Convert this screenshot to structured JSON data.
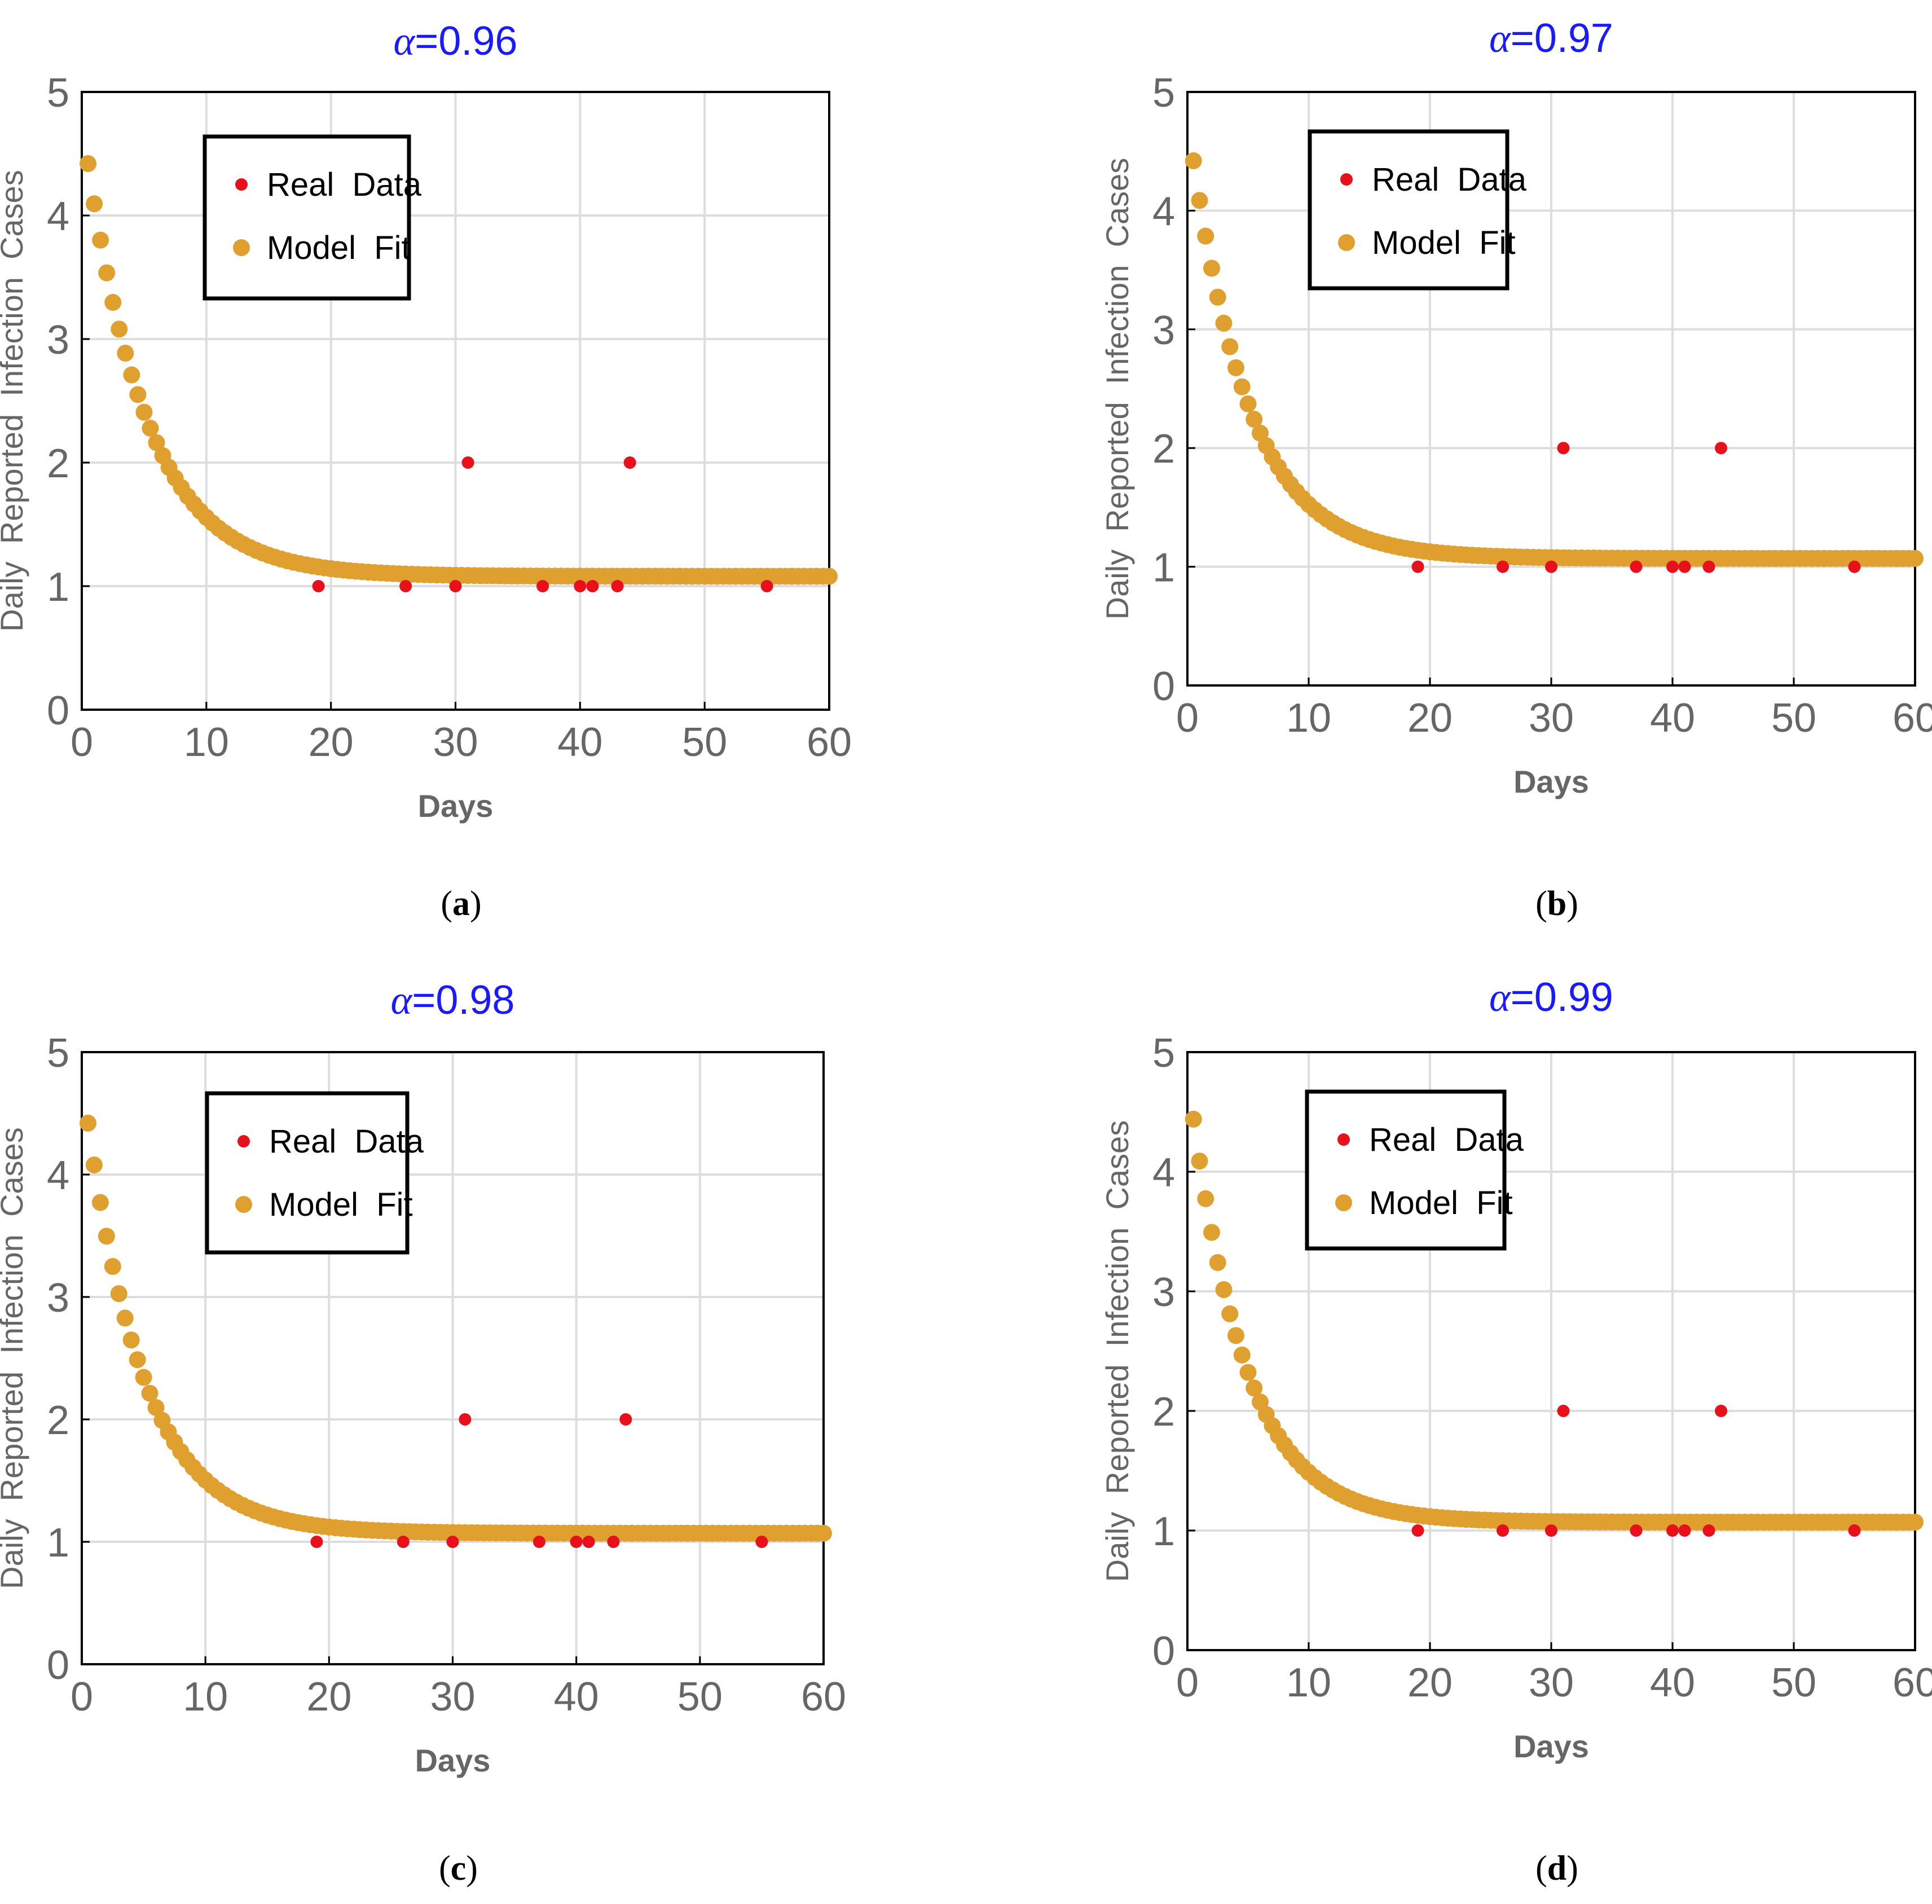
{
  "figure": {
    "colors": {
      "real": "#e8101a",
      "model": "#e0a030",
      "title": "#1a1aff",
      "grid": "#dddddd",
      "axis": "#666666",
      "frame": "#000000"
    },
    "shared": {
      "xlabel": "Days",
      "ylabel": "Daily  Reported  Infection  Cases",
      "legend": {
        "real_label": "Real  Data",
        "model_label": "Model  Fit"
      },
      "x_ticks": [
        "0",
        "10",
        "20",
        "30",
        "40",
        "50",
        "60"
      ],
      "y_ticks": [
        "0",
        "1",
        "2",
        "3",
        "4",
        "5"
      ]
    },
    "panels": [
      {
        "id": "a",
        "title_symbol": "α",
        "title_value": "=0.96",
        "caption_open": "(",
        "caption_letter": "a",
        "caption_close": ")"
      },
      {
        "id": "b",
        "title_symbol": "α",
        "title_value": "=0.97",
        "caption_open": "(",
        "caption_letter": "b",
        "caption_close": ")"
      },
      {
        "id": "c",
        "title_symbol": "α",
        "title_value": "=0.98",
        "caption_open": "(",
        "caption_letter": "c",
        "caption_close": ")"
      },
      {
        "id": "d",
        "title_symbol": "α",
        "title_value": "=0.99",
        "caption_open": "(",
        "caption_letter": "d",
        "caption_close": ")"
      }
    ]
  },
  "chart_data": [
    {
      "type": "scatter",
      "title": "α=0.96",
      "xlabel": "Days",
      "ylabel": "Daily  Reported  Infection  Cases",
      "xlim": [
        0,
        60
      ],
      "ylim": [
        0,
        5
      ],
      "legend_position": "top-left",
      "series": [
        {
          "name": "Real  Data",
          "x": [
            19,
            26,
            30,
            31,
            37,
            40,
            41,
            43,
            44,
            55
          ],
          "y": [
            1,
            1,
            1,
            2,
            1,
            1,
            1,
            1,
            2,
            1
          ]
        },
        {
          "name": "Model  Fit",
          "model": {
            "start": 0.5,
            "end": 60,
            "step": 0.5,
            "plateau": 1.08,
            "initial": 4.42,
            "rate": 0.205
          }
        }
      ]
    },
    {
      "type": "scatter",
      "title": "α=0.97",
      "xlabel": "Days",
      "ylabel": "Daily  Reported  Infection  Cases",
      "xlim": [
        0,
        60
      ],
      "ylim": [
        0,
        5
      ],
      "legend_position": "top-left",
      "series": [
        {
          "name": "Real  Data",
          "x": [
            19,
            26,
            30,
            31,
            37,
            40,
            41,
            43,
            44,
            55
          ],
          "y": [
            1,
            1,
            1,
            2,
            1,
            1,
            1,
            1,
            2,
            1
          ]
        },
        {
          "name": "Model  Fit",
          "model": {
            "start": 0.5,
            "end": 60,
            "step": 0.5,
            "plateau": 1.07,
            "initial": 4.42,
            "rate": 0.21
          }
        }
      ]
    },
    {
      "type": "scatter",
      "title": "α=0.98",
      "xlabel": "Days",
      "ylabel": "Daily  Reported  Infection  Cases",
      "xlim": [
        0,
        60
      ],
      "ylim": [
        0,
        5
      ],
      "legend_position": "top-left",
      "series": [
        {
          "name": "Real  Data",
          "x": [
            19,
            26,
            30,
            31,
            37,
            40,
            41,
            43,
            44,
            55
          ],
          "y": [
            1,
            1,
            1,
            2,
            1,
            1,
            1,
            1,
            2,
            1
          ]
        },
        {
          "name": "Model  Fit",
          "model": {
            "start": 0.5,
            "end": 60,
            "step": 0.5,
            "plateau": 1.07,
            "initial": 4.42,
            "rate": 0.215
          }
        }
      ]
    },
    {
      "type": "scatter",
      "title": "α=0.99",
      "xlabel": "Days",
      "ylabel": "Daily  Reported  Infection  Cases",
      "xlim": [
        0,
        60
      ],
      "ylim": [
        0,
        5
      ],
      "legend_position": "top-left",
      "series": [
        {
          "name": "Real  Data",
          "x": [
            19,
            26,
            30,
            31,
            37,
            40,
            41,
            43,
            44,
            55
          ],
          "y": [
            1,
            1,
            1,
            2,
            1,
            1,
            1,
            1,
            2,
            1
          ]
        },
        {
          "name": "Model  Fit",
          "model": {
            "start": 0.5,
            "end": 60,
            "step": 0.5,
            "plateau": 1.07,
            "initial": 4.44,
            "rate": 0.22
          }
        }
      ]
    }
  ]
}
